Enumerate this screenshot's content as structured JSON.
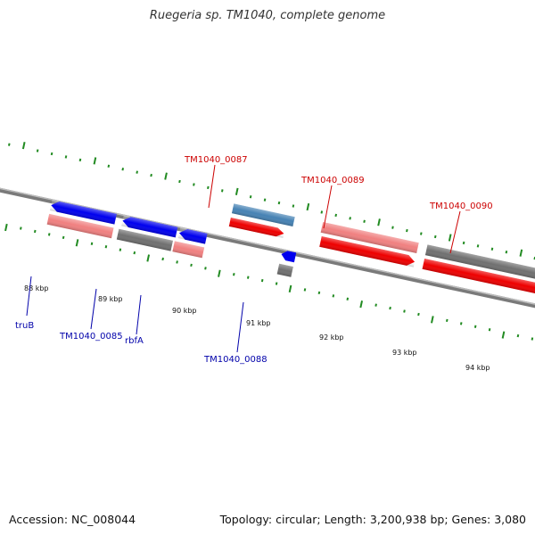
{
  "title": "Ruegeria sp. TM1040, complete genome",
  "footer": {
    "accession": "Accession: NC_008044",
    "topology": "Topology: circular; Length: 3,200,938 bp; Genes: 3,080"
  },
  "tick_labels": [
    "88 kbp",
    "89 kbp",
    "90 kbp",
    "91 kbp",
    "92 kbp",
    "93 kbp",
    "94 kbp"
  ],
  "gene_labels": {
    "forward": [
      "TM1040_0087",
      "TM1040_0089",
      "TM1040_0090"
    ],
    "reverse": [
      "truB",
      "TM1040_0085",
      "rbfA",
      "TM1040_0088"
    ]
  },
  "colors": {
    "forward_label": "#cc0000",
    "reverse_label": "#0000aa",
    "cds_forward": "#ee0000",
    "cds_reverse": "#0000ee",
    "gene_pink": "#f08080",
    "gene_gray": "#707070",
    "gene_steelblue": "#4682b4",
    "gene_cyan": "#00bfff",
    "backbone": "#777777",
    "tick": "#228b22"
  }
}
